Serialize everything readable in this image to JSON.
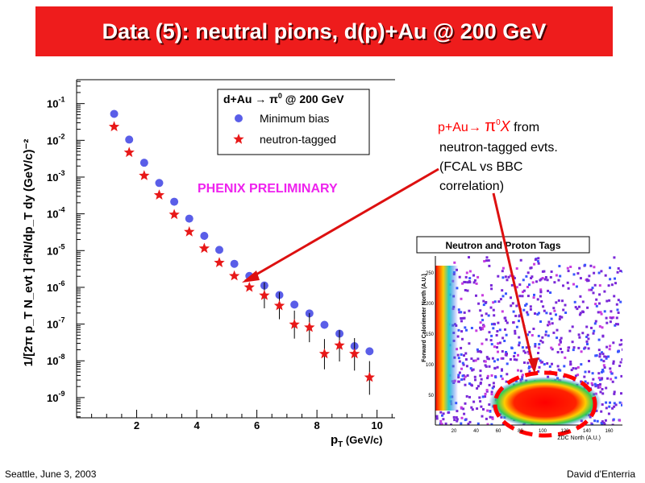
{
  "slide": {
    "title": "Data (5): neutral pions, d(p)+Au @ 200 GeV",
    "footer_left": "Seattle, June  3, 2003",
    "footer_right": "David d'Enterria",
    "preliminary": "PHENIX PRELIMINARY",
    "annotation": {
      "line1_a": "p+Au→ ",
      "line1_pi": "π",
      "line1_sup": "0",
      "line1_x": "X",
      "line1_b": "  from",
      "line2": "neutron-tagged evts.",
      "line3": "(FCAL vs BBC",
      "line4": "correlation)",
      "color": "#ff0000"
    },
    "inset": {
      "title": "Neutron and Proton Tags",
      "xlabel": "ZDC North (A.U.)",
      "ylabel": "Forward Calorimeter North (A.U.)",
      "xticks": [
        "20",
        "40",
        "60",
        "80",
        "100",
        "120",
        "140",
        "160"
      ],
      "yticks": [
        "50",
        "100",
        "150",
        "200",
        "250"
      ]
    }
  },
  "chart_data": {
    "type": "scatter",
    "log_y": true,
    "xlabel": "p",
    "xlabel_sub": "T",
    "xlabel_unit": " (GeV/c)",
    "ylabel": "1/[2π p_T N_evt ] d²N/dp_T dy (GeV/c)⁻²",
    "xlim": [
      0,
      10.6
    ],
    "ylim_exp": [
      -9.55,
      -0.35
    ],
    "xticks": [
      2,
      4,
      6,
      8,
      10
    ],
    "yticks": [
      {
        "exp": -1,
        "label": "10",
        "sup": "-1"
      },
      {
        "exp": -2,
        "label": "10",
        "sup": "-2"
      },
      {
        "exp": -3,
        "label": "10",
        "sup": "-3"
      },
      {
        "exp": -4,
        "label": "10",
        "sup": "-4"
      },
      {
        "exp": -5,
        "label": "10",
        "sup": "-5"
      },
      {
        "exp": -6,
        "label": "10",
        "sup": "-6"
      },
      {
        "exp": -7,
        "label": "10",
        "sup": "-7"
      },
      {
        "exp": -8,
        "label": "10",
        "sup": "-8"
      },
      {
        "exp": -9,
        "label": "10",
        "sup": "-9"
      }
    ],
    "legend": {
      "title_a": "d+Au → ",
      "title_pi": "π",
      "title_sup": "0",
      "title_b": " @ 200 GeV",
      "placement": "top-right"
    },
    "series": [
      {
        "name": "Minimum bias",
        "color": "#5a5ee8",
        "marker": "circle",
        "x": [
          1.25,
          1.75,
          2.25,
          2.75,
          3.25,
          3.75,
          4.25,
          4.75,
          5.25,
          5.75,
          6.25,
          6.75,
          7.25,
          7.75,
          8.25,
          8.75,
          9.25,
          9.75
        ],
        "log10_y": [
          -1.28,
          -1.98,
          -2.61,
          -3.16,
          -3.67,
          -4.13,
          -4.6,
          -4.98,
          -5.36,
          -5.69,
          -5.95,
          -6.21,
          -6.47,
          -6.71,
          -7.02,
          -7.26,
          -7.6,
          -7.74
        ]
      },
      {
        "name": "neutron-tagged",
        "color": "#e81818",
        "marker": "star",
        "x": [
          1.25,
          1.75,
          2.25,
          2.75,
          3.25,
          3.75,
          4.25,
          4.75,
          5.25,
          5.75,
          6.25,
          6.75,
          7.25,
          7.75,
          8.25,
          8.75,
          9.25,
          9.75
        ],
        "log10_y": [
          -1.63,
          -2.33,
          -2.96,
          -3.49,
          -4.02,
          -4.49,
          -4.94,
          -5.33,
          -5.69,
          -6.0,
          -6.22,
          -6.5,
          -7.01,
          -7.09,
          -7.81,
          -7.58,
          -7.81,
          -8.45
        ]
      }
    ]
  }
}
